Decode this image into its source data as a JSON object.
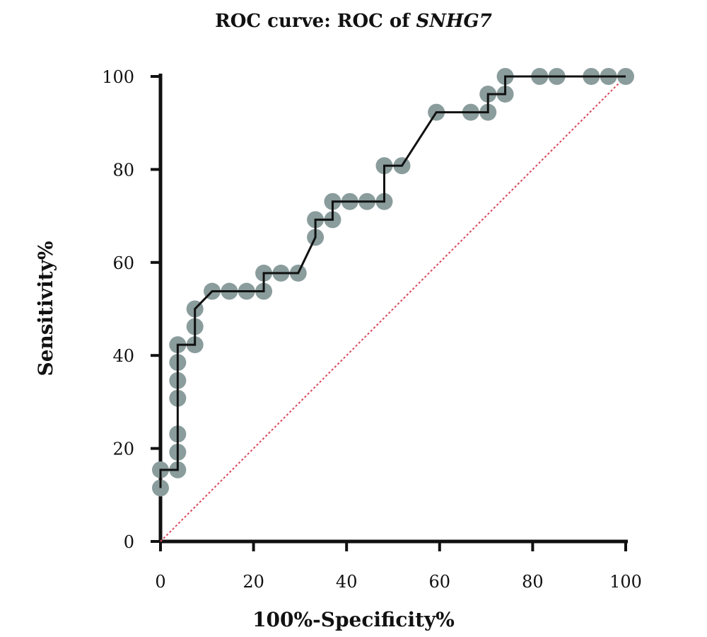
{
  "chart_data": {
    "type": "line",
    "title_prefix": "ROC curve: ROC of ",
    "title_gene": "SNHG7",
    "xlabel": "100%-Specificity%",
    "ylabel": "Sensitivity%",
    "xlim": [
      0,
      100
    ],
    "ylim": [
      0,
      100
    ],
    "x_ticks": [
      "0",
      "20",
      "40",
      "60",
      "80",
      "100"
    ],
    "y_ticks": [
      "0",
      "20",
      "40",
      "60",
      "80",
      "100"
    ],
    "grid": false,
    "legend": "none",
    "colors": {
      "curve": "#111111",
      "points": "#8a9c9c",
      "reference": "#d9485a"
    },
    "series": [
      {
        "name": "",
        "x": [
          0,
          0,
          3.7,
          3.7,
          3.7,
          3.7,
          3.7,
          3.7,
          3.7,
          7.4,
          7.4,
          7.4,
          11.1,
          14.8,
          18.5,
          22.2,
          22.2,
          25.9,
          29.6,
          33.3,
          33.3,
          37.0,
          37.0,
          40.7,
          44.4,
          48.1,
          48.1,
          51.9,
          59.3,
          66.7,
          70.4,
          70.4,
          74.1,
          74.1,
          81.5,
          85.2,
          92.6,
          96.3,
          100
        ],
        "y": [
          11.5,
          15.4,
          15.4,
          19.2,
          23.1,
          30.8,
          34.6,
          38.5,
          42.3,
          42.3,
          46.2,
          50.0,
          53.8,
          53.8,
          53.8,
          53.8,
          57.7,
          57.7,
          57.7,
          65.4,
          69.2,
          69.2,
          73.1,
          73.1,
          73.1,
          73.1,
          80.8,
          80.8,
          92.3,
          92.3,
          92.3,
          96.2,
          96.2,
          100,
          100,
          100,
          100,
          100,
          100
        ]
      }
    ],
    "reference_line": {
      "x": [
        0,
        100
      ],
      "y": [
        0,
        100
      ]
    }
  }
}
